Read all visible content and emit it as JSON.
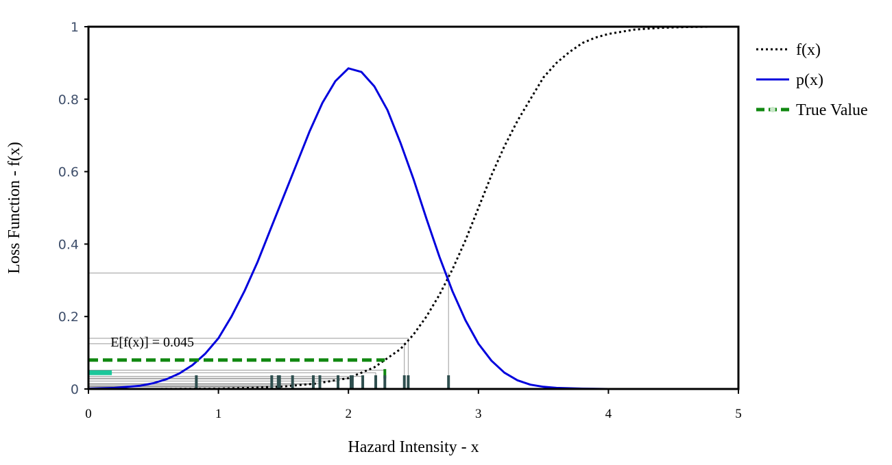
{
  "chart_data": {
    "type": "line",
    "xlabel": "Hazard Intensity - x",
    "ylabel": "Loss Function - f(x)",
    "xlim": [
      0,
      5
    ],
    "ylim": [
      0,
      1
    ],
    "x_ticks": [
      "0",
      "1",
      "2",
      "3",
      "4",
      "5"
    ],
    "y_ticks": [
      "0",
      "0.2",
      "0.4",
      "0.6",
      "0.8",
      "1"
    ],
    "grid": false,
    "legend_position": "right",
    "series": [
      {
        "name": "f(x)",
        "style": "dotted",
        "color": "#000000",
        "x": [
          0,
          0.5,
          1.0,
          1.25,
          1.5,
          1.75,
          2.0,
          2.1,
          2.2,
          2.3,
          2.4,
          2.5,
          2.6,
          2.7,
          2.8,
          2.9,
          3.0,
          3.1,
          3.2,
          3.3,
          3.4,
          3.5,
          3.6,
          3.7,
          3.8,
          3.9,
          4.0,
          4.2,
          4.4,
          4.6,
          4.8,
          5.0
        ],
        "y": [
          0,
          0,
          0.001,
          0.003,
          0.007,
          0.015,
          0.03,
          0.045,
          0.06,
          0.085,
          0.11,
          0.15,
          0.2,
          0.26,
          0.33,
          0.41,
          0.5,
          0.59,
          0.67,
          0.74,
          0.8,
          0.86,
          0.9,
          0.93,
          0.955,
          0.97,
          0.98,
          0.992,
          0.997,
          0.999,
          1.0,
          1.0
        ]
      },
      {
        "name": "p(x)",
        "style": "solid",
        "color": "#0000dd",
        "x": [
          0,
          0.2,
          0.4,
          0.5,
          0.6,
          0.7,
          0.8,
          0.9,
          1.0,
          1.1,
          1.2,
          1.3,
          1.4,
          1.5,
          1.6,
          1.7,
          1.8,
          1.9,
          2.0,
          2.1,
          2.2,
          2.3,
          2.4,
          2.5,
          2.6,
          2.7,
          2.8,
          2.9,
          3.0,
          3.1,
          3.2,
          3.3,
          3.4,
          3.5,
          3.6,
          3.8,
          4.0,
          4.5,
          5.0
        ],
        "y": [
          0.001,
          0.003,
          0.009,
          0.016,
          0.027,
          0.043,
          0.066,
          0.098,
          0.14,
          0.2,
          0.27,
          0.35,
          0.44,
          0.53,
          0.62,
          0.71,
          0.79,
          0.85,
          0.885,
          0.875,
          0.835,
          0.77,
          0.68,
          0.58,
          0.47,
          0.365,
          0.27,
          0.19,
          0.125,
          0.078,
          0.045,
          0.024,
          0.012,
          0.006,
          0.003,
          0.001,
          0.0,
          0.0,
          0.0
        ]
      },
      {
        "name": "True Value",
        "style": "dashed",
        "color": "#118811",
        "x": [
          0,
          2.28
        ],
        "y": [
          0.08,
          0.08
        ]
      }
    ],
    "samples": {
      "x": [
        0.83,
        1.41,
        1.46,
        1.47,
        1.57,
        1.73,
        1.78,
        1.92,
        2.02,
        2.03,
        2.11,
        2.21,
        2.28,
        2.43,
        2.46,
        2.77
      ],
      "fx": [
        0.0,
        0.006,
        0.007,
        0.008,
        0.009,
        0.013,
        0.015,
        0.022,
        0.028,
        0.03,
        0.035,
        0.045,
        0.052,
        0.125,
        0.14,
        0.32
      ],
      "color": "#2f4f4f"
    },
    "true_value_marker": {
      "x": 2.28,
      "color": "#118811"
    },
    "teal_bar": {
      "x": [
        0,
        0.18
      ],
      "y": 0.045,
      "color": "#1cc79a"
    },
    "annotation": {
      "text": "E[f(x)] = 0.045",
      "x": 0.17,
      "y": 0.13
    }
  }
}
